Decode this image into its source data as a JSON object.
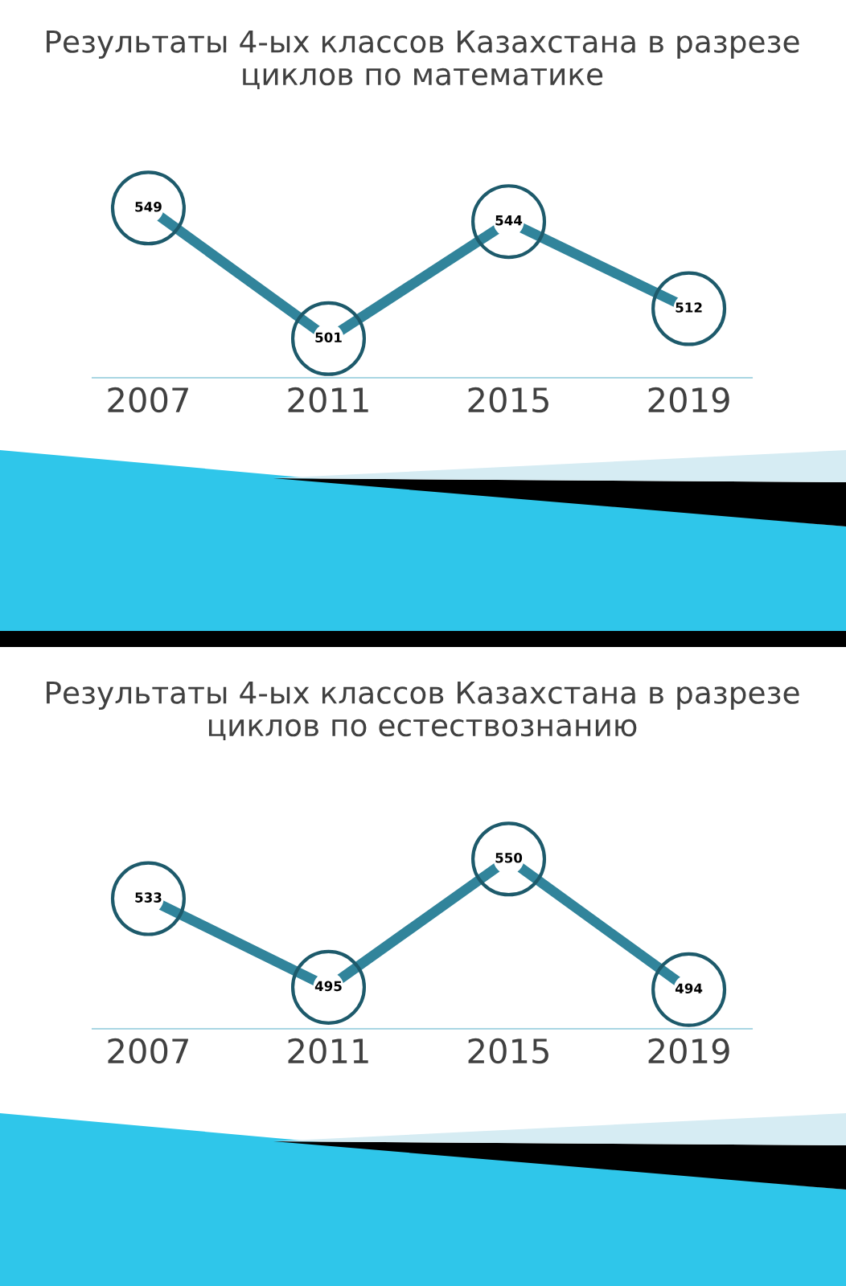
{
  "chart_data": [
    {
      "type": "line",
      "title": "Результаты 4-ых классов Казахстана в разрезе\nциклов по математике",
      "categories": [
        "2007",
        "2011",
        "2015",
        "2019"
      ],
      "series": [
        {
          "color": "#31849b",
          "values": [
            549,
            501,
            544,
            512
          ]
        }
      ],
      "data_labels": true,
      "marker": "circle",
      "line_style": "solid",
      "tick_labels": "x"
    },
    {
      "type": "line",
      "title": "Результаты 4-ых классов Казахстана в разрезе\nциклов по естествознанию",
      "categories": [
        "2007",
        "2011",
        "2015",
        "2019"
      ],
      "series": [
        {
          "color": "#31849b",
          "values": [
            533,
            495,
            550,
            494
          ]
        }
      ],
      "data_labels": true,
      "marker": "circle",
      "line_style": "solid",
      "tick_labels": "x"
    }
  ]
}
